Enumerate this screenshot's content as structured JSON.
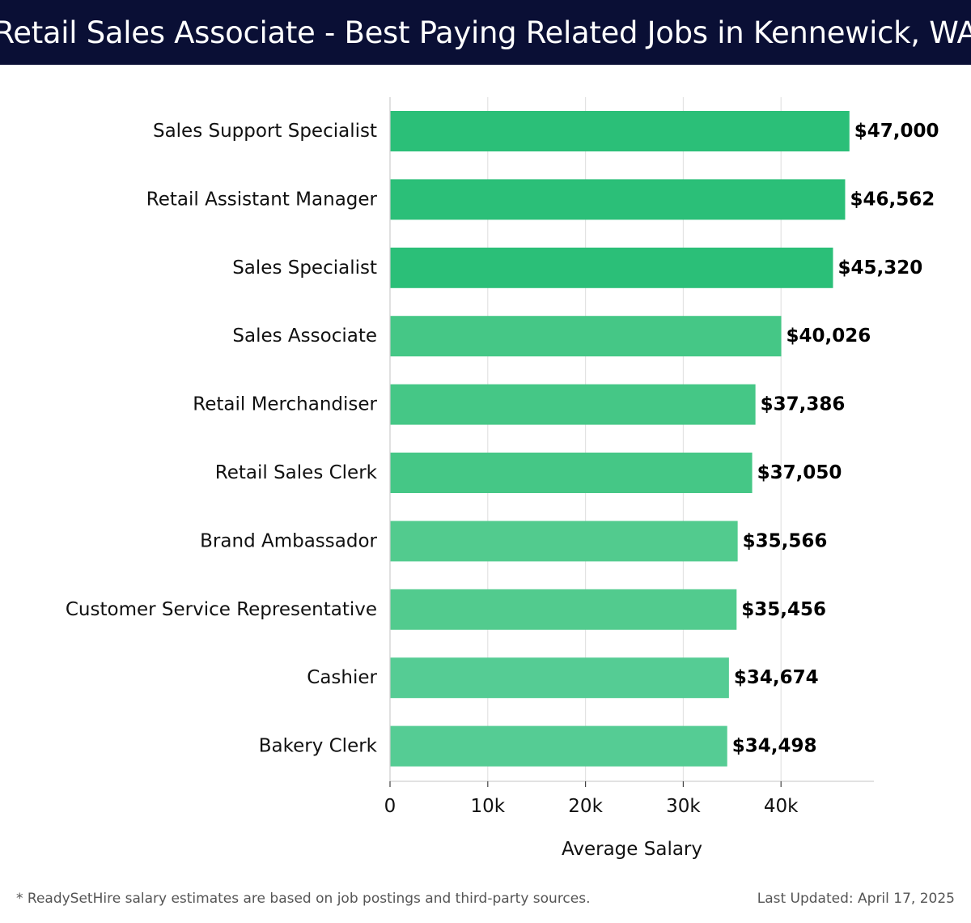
{
  "title": "Retail Sales Associate - Best Paying Related Jobs in Kennewick, WA",
  "chart_data": {
    "type": "bar",
    "orientation": "horizontal",
    "categories": [
      "Sales Support Specialist",
      "Retail Assistant Manager",
      "Sales Specialist",
      "Sales Associate",
      "Retail Merchandiser",
      "Retail Sales Clerk",
      "Brand Ambassador",
      "Customer Service Representative",
      "Cashier",
      "Bakery Clerk"
    ],
    "values": [
      47000,
      46562,
      45320,
      40026,
      37386,
      37050,
      35566,
      35456,
      34674,
      34498
    ],
    "value_labels": [
      "$47,000",
      "$46,562",
      "$45,320",
      "$40,026",
      "$37,386",
      "$37,050",
      "$35,566",
      "$35,456",
      "$34,674",
      "$34,498"
    ],
    "xlabel": "Average Salary",
    "ylabel": "",
    "xlim": [
      0,
      49500
    ],
    "xticks": [
      0,
      10000,
      20000,
      30000,
      40000
    ],
    "xtick_labels": [
      "0",
      "10k",
      "20k",
      "30k",
      "40k"
    ],
    "grid": true,
    "bar_colors": [
      "#2bbf78",
      "#2bbf78",
      "#2bbf78",
      "#45c786",
      "#45c786",
      "#45c786",
      "#52cb8e",
      "#52cb8e",
      "#55cc94",
      "#55cc94"
    ]
  },
  "footer": {
    "note": "* ReadySetHire salary estimates are based on job postings and third-party sources.",
    "updated": "Last Updated: April 17, 2025"
  }
}
